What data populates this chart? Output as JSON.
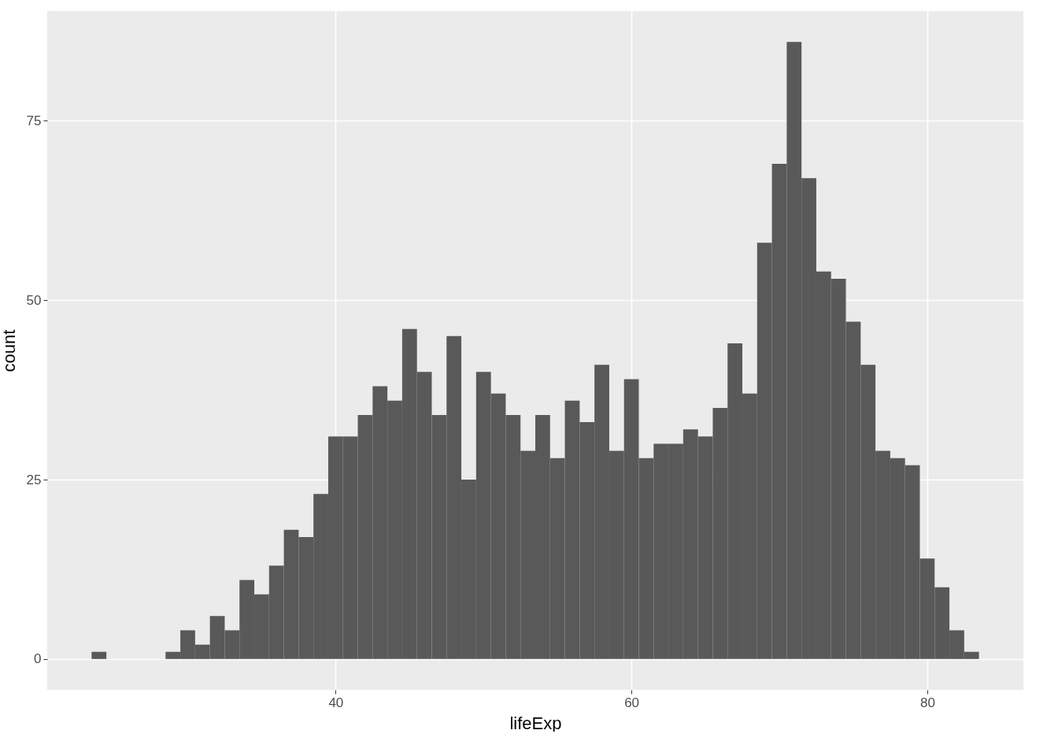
{
  "chart_data": {
    "type": "histogram",
    "xlabel": "lifeExp",
    "ylabel": "count",
    "color": "#595959",
    "bins": [
      23.5,
      24.5,
      25.5,
      26.5,
      27.5,
      28.5,
      29.5,
      30.5,
      31.5,
      32.5,
      33.5,
      34.5,
      35.5,
      36.5,
      37.5,
      38.5,
      39.5,
      40.5,
      41.5,
      42.5,
      43.5,
      44.5,
      45.5,
      46.5,
      47.5,
      48.5,
      49.5,
      50.5,
      51.5,
      52.5,
      53.5,
      54.5,
      55.5,
      56.5,
      57.5,
      58.5,
      59.5,
      60.5,
      61.5,
      62.5,
      63.5,
      64.5,
      65.5,
      66.5,
      67.5,
      68.5,
      69.5,
      70.5,
      71.5,
      72.5,
      73.5,
      74.5,
      75.5,
      76.5,
      77.5,
      78.5,
      79.5,
      80.5,
      81.5,
      82.5,
      83.5
    ],
    "values": [
      1,
      0,
      0,
      0,
      0,
      1,
      4,
      2,
      6,
      4,
      11,
      9,
      13,
      18,
      17,
      23,
      31,
      31,
      34,
      38,
      36,
      46,
      40,
      34,
      45,
      25,
      40,
      37,
      34,
      29,
      34,
      28,
      36,
      33,
      41,
      29,
      39,
      28,
      30,
      30,
      32,
      31,
      35,
      44,
      37,
      58,
      69,
      86,
      67,
      54,
      53,
      47,
      41,
      29,
      28,
      27,
      14,
      10,
      4,
      1
    ],
    "xlim": [
      20.5,
      86.5
    ],
    "xticks": [
      40,
      60,
      80
    ],
    "ylim": [
      -4.3,
      90.3
    ],
    "yticks": [
      0,
      25,
      50,
      75
    ],
    "grid": true
  }
}
